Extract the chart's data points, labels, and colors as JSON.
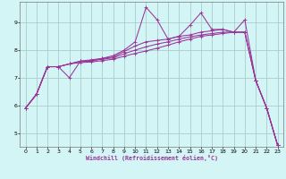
{
  "xlabel": "Windchill (Refroidissement éolien,°C)",
  "bg_color": "#d4f5f5",
  "grid_color": "#aacccc",
  "line_color": "#993399",
  "xlim": [
    -0.5,
    23.5
  ],
  "ylim": [
    4.5,
    9.75
  ],
  "xticks": [
    0,
    1,
    2,
    3,
    4,
    5,
    6,
    7,
    8,
    9,
    10,
    11,
    12,
    13,
    14,
    15,
    16,
    17,
    18,
    19,
    20,
    21,
    22,
    23
  ],
  "yticks": [
    5,
    6,
    7,
    8,
    9
  ],
  "series": [
    [
      5.9,
      6.4,
      7.4,
      7.4,
      7.0,
      7.6,
      7.6,
      7.7,
      7.8,
      8.0,
      8.3,
      9.55,
      9.1,
      8.4,
      8.5,
      8.9,
      9.35,
      8.75,
      8.75,
      8.65,
      9.1,
      6.9,
      5.9,
      4.55
    ],
    [
      5.9,
      6.4,
      7.4,
      7.4,
      7.5,
      7.6,
      7.65,
      7.7,
      7.75,
      7.95,
      8.15,
      8.3,
      8.35,
      8.4,
      8.5,
      8.55,
      8.65,
      8.7,
      8.75,
      8.65,
      8.65,
      6.9,
      5.9,
      4.55
    ],
    [
      5.9,
      6.4,
      7.4,
      7.4,
      7.5,
      7.6,
      7.62,
      7.67,
      7.72,
      7.87,
      8.0,
      8.12,
      8.22,
      8.3,
      8.4,
      8.48,
      8.55,
      8.6,
      8.65,
      8.65,
      8.65,
      6.9,
      5.9,
      4.55
    ],
    [
      5.9,
      6.4,
      7.4,
      7.4,
      7.5,
      7.55,
      7.57,
      7.62,
      7.67,
      7.78,
      7.88,
      7.97,
      8.07,
      8.18,
      8.3,
      8.4,
      8.5,
      8.55,
      8.6,
      8.65,
      8.65,
      6.9,
      5.9,
      4.55
    ]
  ]
}
